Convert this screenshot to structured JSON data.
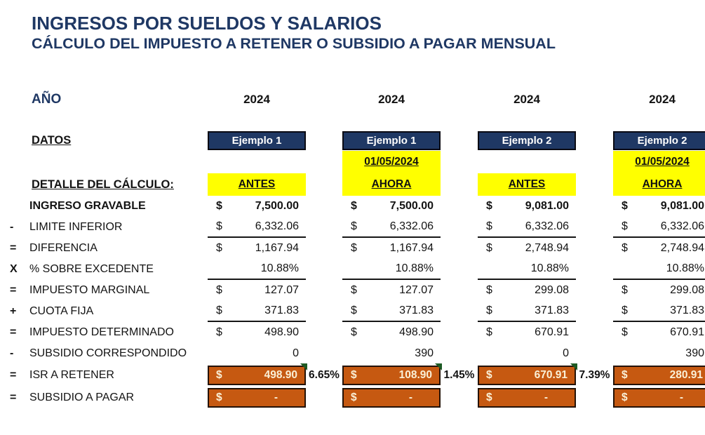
{
  "title": "INGRESOS POR SUELDOS Y SALARIOS",
  "subtitle": "CÁLCULO DEL IMPUESTO A RETENER O SUBSIDIO A PAGAR MENSUAL",
  "year_label": "AÑO",
  "years": [
    "2024",
    "2024",
    "2024",
    "2024"
  ],
  "datos_label": "DATOS",
  "detalle_label": "DETALLE DEL CÁLCULO:",
  "columns": [
    {
      "example": "Ejemplo 1",
      "date": "",
      "period": "ANTES"
    },
    {
      "example": "Ejemplo 1",
      "date": "01/05/2024",
      "period": "AHORA"
    },
    {
      "example": "Ejemplo 2",
      "date": "",
      "period": "ANTES"
    },
    {
      "example": "Ejemplo 2",
      "date": "01/05/2024",
      "period": "AHORA"
    }
  ],
  "rows": [
    {
      "op": "",
      "label": "INGRESO GRAVABLE",
      "bold": true,
      "cells": [
        {
          "cur": "$",
          "val": "7,500.00"
        },
        {
          "cur": "$",
          "val": "7,500.00"
        },
        {
          "cur": "$",
          "val": "9,081.00"
        },
        {
          "cur": "$",
          "val": "9,081.00"
        }
      ]
    },
    {
      "op": "-",
      "label": "LIMITE INFERIOR",
      "underline": true,
      "cells": [
        {
          "cur": "$",
          "val": "6,332.06"
        },
        {
          "cur": "$",
          "val": "6,332.06"
        },
        {
          "cur": "$",
          "val": "6,332.06"
        },
        {
          "cur": "$",
          "val": "6,332.06"
        }
      ]
    },
    {
      "op": "=",
      "label": "DIFERENCIA",
      "cells": [
        {
          "cur": "$",
          "val": "1,167.94"
        },
        {
          "cur": "$",
          "val": "1,167.94"
        },
        {
          "cur": "$",
          "val": "2,748.94"
        },
        {
          "cur": "$",
          "val": "2,748.94"
        }
      ]
    },
    {
      "op": "X",
      "label": "% SOBRE EXCEDENTE",
      "underline": true,
      "cells": [
        {
          "cur": "",
          "val": "10.88%"
        },
        {
          "cur": "",
          "val": "10.88%"
        },
        {
          "cur": "",
          "val": "10.88%"
        },
        {
          "cur": "",
          "val": "10.88%"
        }
      ]
    },
    {
      "op": "=",
      "label": "IMPUESTO MARGINAL",
      "cells": [
        {
          "cur": "$",
          "val": "127.07"
        },
        {
          "cur": "$",
          "val": "127.07"
        },
        {
          "cur": "$",
          "val": "299.08"
        },
        {
          "cur": "$",
          "val": "299.08"
        }
      ]
    },
    {
      "op": "+",
      "label": "CUOTA FIJA",
      "underline": true,
      "cells": [
        {
          "cur": "$",
          "val": "371.83"
        },
        {
          "cur": "$",
          "val": "371.83"
        },
        {
          "cur": "$",
          "val": "371.83"
        },
        {
          "cur": "$",
          "val": "371.83"
        }
      ]
    },
    {
      "op": "=",
      "label": "IMPUESTO DETERMINADO",
      "cells": [
        {
          "cur": "$",
          "val": "498.90"
        },
        {
          "cur": "$",
          "val": "498.90"
        },
        {
          "cur": "$",
          "val": "670.91"
        },
        {
          "cur": "$",
          "val": "670.91"
        }
      ]
    },
    {
      "op": "-",
      "label": "SUBSIDIO CORRESPONDIDO",
      "cells": [
        {
          "cur": "",
          "val": "0"
        },
        {
          "cur": "",
          "val": "390"
        },
        {
          "cur": "",
          "val": "0"
        },
        {
          "cur": "",
          "val": "390"
        }
      ]
    },
    {
      "op": "=",
      "label": "ISR A RETENER",
      "highlight": true,
      "triangle": true,
      "between": [
        "6.65%",
        "1.45%",
        "7.39%"
      ],
      "cells": [
        {
          "cur": "$",
          "val": "498.90"
        },
        {
          "cur": "$",
          "val": "108.90"
        },
        {
          "cur": "$",
          "val": "670.91"
        },
        {
          "cur": "$",
          "val": "280.91"
        }
      ]
    },
    {
      "op": "=",
      "label": "SUBSIDIO A PAGAR",
      "highlight": true,
      "cells": [
        {
          "cur": "$",
          "val": "-"
        },
        {
          "cur": "$",
          "val": "-"
        },
        {
          "cur": "$",
          "val": "-"
        },
        {
          "cur": "$",
          "val": "-"
        }
      ]
    }
  ],
  "colors": {
    "navy": "#1F3864",
    "yellow": "#FFFF00",
    "orange": "#C65911",
    "orange_border": "#241205",
    "cell_text_cream": "#FAF0D7",
    "comment_triangle_green": "#1d5b24"
  }
}
